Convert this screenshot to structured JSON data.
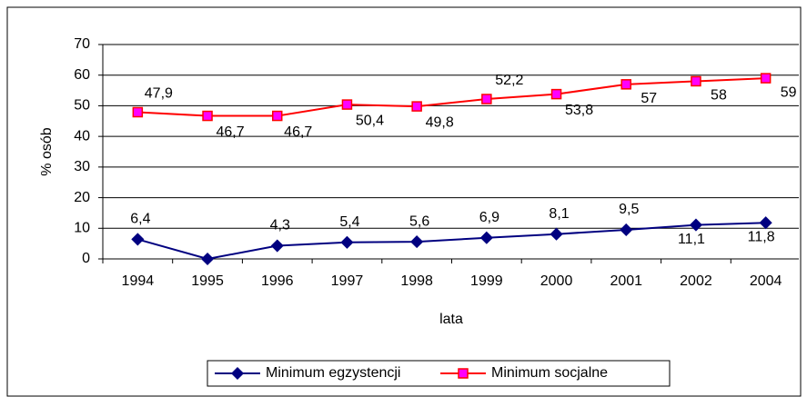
{
  "chart_data": {
    "type": "line",
    "x_label": "lata",
    "y_label": "% osób",
    "categories": [
      "1994",
      "1995",
      "1996",
      "1997",
      "1998",
      "1999",
      "2000",
      "2001",
      "2002",
      "2004"
    ],
    "series": [
      {
        "name": "Minimum egzystencji",
        "color": "#000080",
        "marker": "diamond",
        "marker_color": "#000080",
        "values": [
          6.4,
          0,
          4.3,
          5.4,
          5.6,
          6.9,
          8.1,
          9.5,
          11.1,
          11.8
        ],
        "value_labels": [
          "6,4",
          null,
          "4,3",
          "5,4",
          "5,6",
          "6,9",
          "8,1",
          "9,5",
          "11,1",
          "11,8"
        ]
      },
      {
        "name": "Minimum socjalne",
        "color": "#ff0000",
        "marker": "square",
        "marker_color": "#ff00ff",
        "values": [
          47.9,
          46.7,
          46.7,
          50.4,
          49.8,
          52.2,
          53.8,
          57,
          58,
          59
        ],
        "value_labels": [
          "47,9",
          "46,7",
          "46,7",
          "50,4",
          "49,8",
          "52,2",
          "53,8",
          "57",
          "58",
          "59"
        ]
      }
    ],
    "ylim": [
      0,
      70
    ],
    "yticks": [
      0,
      10,
      20,
      30,
      40,
      50,
      60,
      70
    ],
    "grid": true,
    "legend": "bottom"
  }
}
